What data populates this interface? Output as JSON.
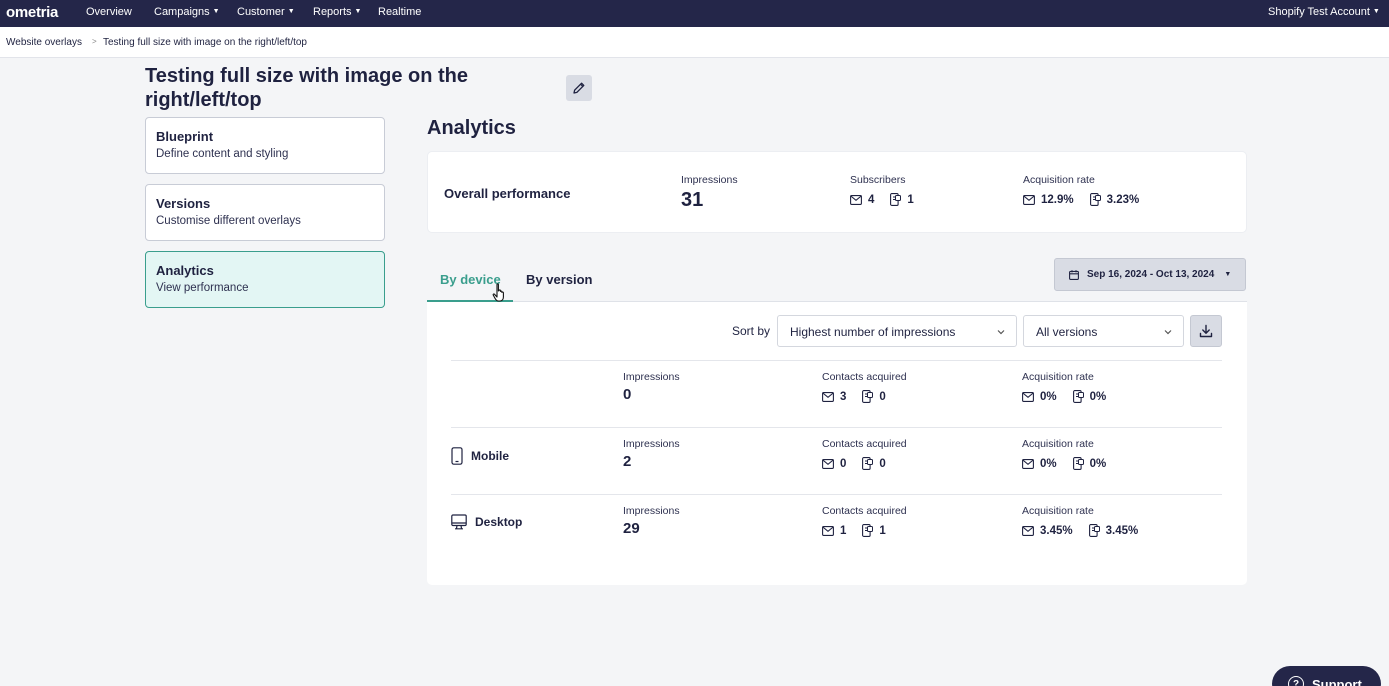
{
  "topbar": {
    "logo": "ometria",
    "nav": [
      {
        "label": "Overview"
      },
      {
        "label": "Campaigns"
      },
      {
        "label": "Customer"
      },
      {
        "label": "Reports"
      },
      {
        "label": "Realtime"
      }
    ],
    "account": "Shopify Test Account"
  },
  "breadcrumb": {
    "parent": "Website overlays",
    "separator": ">",
    "current": "Testing full size with image on the right/left/top"
  },
  "page": {
    "title": "Testing full size with image on the right/left/top",
    "edit_icon": "pencil-icon"
  },
  "sidebar": {
    "items": [
      {
        "title": "Blueprint",
        "desc": "Define content and styling",
        "active": false
      },
      {
        "title": "Versions",
        "desc": "Customise different overlays",
        "active": false
      },
      {
        "title": "Analytics",
        "desc": "View performance",
        "active": true
      }
    ]
  },
  "analytics": {
    "title": "Analytics",
    "overall": {
      "label": "Overall performance",
      "impressions_label": "Impressions",
      "impressions": "31",
      "subscribers_label": "Subscribers",
      "subscribers_email": "4",
      "subscribers_sms": "1",
      "rate_label": "Acquisition rate",
      "rate_email": "12.9%",
      "rate_sms": "3.23%"
    },
    "tabs": [
      {
        "label": "By device",
        "active": true
      },
      {
        "label": "By version",
        "active": false
      }
    ],
    "date_range": "Sep 16, 2024 - Oct 13, 2024",
    "sort_label": "Sort by",
    "sort_value": "Highest number of impressions",
    "version_value": "All versions",
    "rows": [
      {
        "device": "",
        "icon": "",
        "impressions_label": "Impressions",
        "impressions": "0",
        "contacts_label": "Contacts acquired",
        "contacts_email": "3",
        "contacts_sms": "0",
        "rate_label": "Acquisition rate",
        "rate_email": "0%",
        "rate_sms": "0%"
      },
      {
        "device": "Mobile",
        "icon": "mobile-icon",
        "impressions_label": "Impressions",
        "impressions": "2",
        "contacts_label": "Contacts acquired",
        "contacts_email": "0",
        "contacts_sms": "0",
        "rate_label": "Acquisition rate",
        "rate_email": "0%",
        "rate_sms": "0%"
      },
      {
        "device": "Desktop",
        "icon": "desktop-icon",
        "impressions_label": "Impressions",
        "impressions": "29",
        "contacts_label": "Contacts acquired",
        "contacts_email": "1",
        "contacts_sms": "1",
        "rate_label": "Acquisition rate",
        "rate_email": "3.45%",
        "rate_sms": "3.45%"
      }
    ]
  },
  "support": {
    "label": "Support"
  },
  "colors": {
    "navy": "#242649",
    "accent": "#3a9e8d",
    "background": "#f4f5f7"
  }
}
